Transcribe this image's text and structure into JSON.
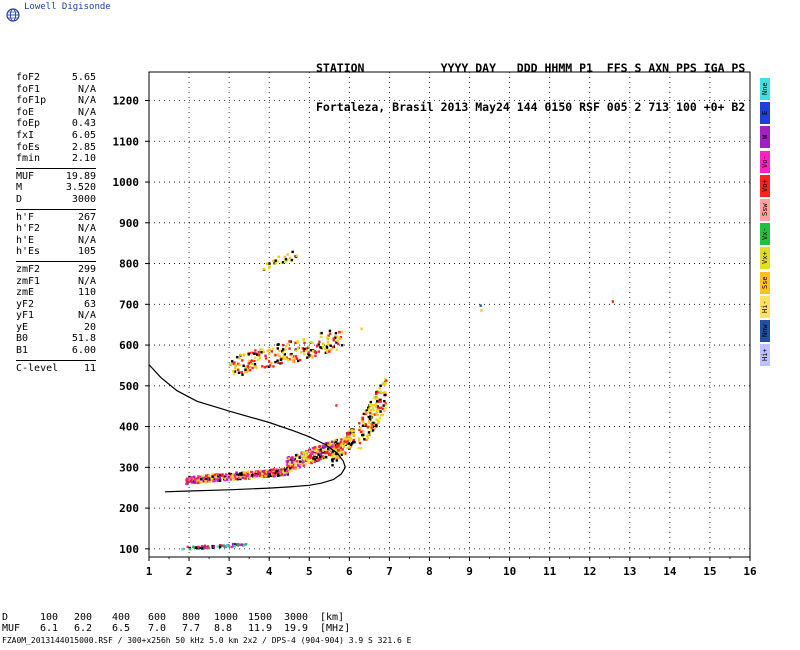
{
  "logo": {
    "brand": "Lowell Digisonde",
    "icon": "globe-icon"
  },
  "header": {
    "line1": "STATION           YYYY DAY   DDD HHMM P1  FFS S AXN PPS IGA PS",
    "line2": "Fortaleza, Brasil 2013 May24 144 0150 RSF 005 2 713 100 +0+ B2"
  },
  "params": {
    "group1": [
      {
        "label": "foF2",
        "value": "5.65"
      },
      {
        "label": "foF1",
        "value": "N/A"
      },
      {
        "label": "foF1p",
        "value": "N/A"
      },
      {
        "label": "foE",
        "value": "N/A"
      },
      {
        "label": "foEp",
        "value": "0.43"
      },
      {
        "label": "fxI",
        "value": "6.05"
      },
      {
        "label": "foEs",
        "value": "2.85"
      },
      {
        "label": "fmin",
        "value": "2.10"
      }
    ],
    "group2": [
      {
        "label": "MUF",
        "value": "19.89"
      },
      {
        "label": "M",
        "value": "3.520"
      },
      {
        "label": "D",
        "value": "3000"
      }
    ],
    "group3": [
      {
        "label": "h'F",
        "value": "267"
      },
      {
        "label": "h'F2",
        "value": "N/A"
      },
      {
        "label": "h'E",
        "value": "N/A"
      },
      {
        "label": "h'Es",
        "value": "105"
      }
    ],
    "group4": [
      {
        "label": "zmF2",
        "value": "299"
      },
      {
        "label": "zmF1",
        "value": "N/A"
      },
      {
        "label": "zmE",
        "value": "110"
      },
      {
        "label": "yF2",
        "value": "63"
      },
      {
        "label": "yF1",
        "value": "N/A"
      },
      {
        "label": "yE",
        "value": "20"
      },
      {
        "label": "B0",
        "value": "51.8"
      },
      {
        "label": "B1",
        "value": "6.00"
      }
    ],
    "group5": [
      {
        "label": "C-level",
        "value": "11"
      }
    ]
  },
  "legend": [
    {
      "label": "Nne",
      "color": "#40e0e0"
    },
    {
      "label": "E",
      "color": "#1f3fd8"
    },
    {
      "label": "W",
      "color": "#a020c0"
    },
    {
      "label": "Vo-",
      "color": "#ff20c0"
    },
    {
      "label": "Vo+",
      "color": "#ff2020"
    },
    {
      "label": "Ssw",
      "color": "#ffa0a0"
    },
    {
      "label": "Vx-",
      "color": "#20c040"
    },
    {
      "label": "Vx+",
      "color": "#e0e020"
    },
    {
      "label": "Sse",
      "color": "#ffc020"
    },
    {
      "label": "Hi-",
      "color": "#ffe060"
    },
    {
      "label": "Nnw",
      "color": "#2050a0"
    },
    {
      "label": "Hi+",
      "color": "#c0c0ff"
    }
  ],
  "table": {
    "row1_label": "D",
    "row1": [
      "100",
      "200",
      "400",
      "600",
      "800",
      "1000",
      "1500",
      "3000",
      "[km]"
    ],
    "row2_label": "MUF",
    "row2": [
      "6.1",
      "6.2",
      "6.5",
      "7.0",
      "7.7",
      "8.8",
      "11.9",
      "19.9",
      "[MHz]"
    ]
  },
  "footer": "FZA0M_2013144015000.RSF / 300+x256h 50 kHz 5.0 km 2x2 / DPS-4 (904-904)  3.9 S 321.6 E",
  "chart_data": {
    "type": "scatter",
    "xlim": [
      1,
      16
    ],
    "ylim": [
      80,
      1270
    ],
    "x_ticks": [
      "1",
      "2",
      "3",
      "4",
      "5",
      "6",
      "7",
      "8",
      "9",
      "10",
      "11",
      "12",
      "13",
      "14",
      "15",
      "16"
    ],
    "y_ticks": [
      "100",
      "200",
      "300",
      "400",
      "500",
      "600",
      "700",
      "800",
      "900",
      "1000",
      "1100",
      "1200"
    ],
    "grid": "dotted",
    "profile": {
      "lower": [
        [
          1.4,
          240
        ],
        [
          2,
          242
        ],
        [
          3,
          245
        ],
        [
          4,
          249
        ],
        [
          4.5,
          252
        ],
        [
          5,
          256
        ],
        [
          5.3,
          261
        ],
        [
          5.6,
          270
        ],
        [
          5.8,
          284
        ],
        [
          5.9,
          300
        ]
      ],
      "upper": [
        [
          1,
          552
        ],
        [
          1.3,
          520
        ],
        [
          1.7,
          488
        ],
        [
          2.2,
          462
        ],
        [
          3,
          438
        ],
        [
          4,
          410
        ],
        [
          4.6,
          390
        ],
        [
          5,
          375
        ],
        [
          5.4,
          356
        ],
        [
          5.7,
          335
        ],
        [
          5.85,
          315
        ],
        [
          5.9,
          300
        ]
      ]
    },
    "clusters": [
      {
        "name": "E-sporadic trace",
        "x": [
          1.8,
          3.4
        ],
        "y": [
          100,
          116
        ],
        "n": 70,
        "colors": [
          "#ff20c0",
          "#ff2020",
          "#a020c0",
          "#40e0e0",
          "#20c040",
          "#000000"
        ]
      },
      {
        "name": "F trace low",
        "x": [
          1.9,
          4.5
        ],
        "y": [
          262,
          300
        ],
        "n": 380,
        "colors": [
          "#ff20c0",
          "#ff2020",
          "#a020c0",
          "#000000",
          "#ffc020",
          "#e0e020"
        ]
      },
      {
        "name": "F trace mid",
        "x": [
          4.4,
          5.7
        ],
        "y": [
          290,
          370
        ],
        "n": 300,
        "colors": [
          "#ffc020",
          "#e0e020",
          "#ff20c0",
          "#000000",
          "#ff2020",
          "#a020c0",
          "#ffe060"
        ]
      },
      {
        "name": "F spread",
        "x": [
          5.5,
          6.1
        ],
        "y": [
          300,
          400
        ],
        "n": 120,
        "colors": [
          "#ffc020",
          "#e0e020",
          "#000000",
          "#ff2020"
        ]
      },
      {
        "name": "F high freq",
        "x": [
          6.2,
          6.9
        ],
        "y": [
          330,
          520
        ],
        "n": 140,
        "colors": [
          "#000000",
          "#ffc020",
          "#e0e020",
          "#ff2020"
        ]
      },
      {
        "name": "Second hop",
        "x": [
          3.0,
          5.8
        ],
        "y": [
          520,
          640
        ],
        "n": 220,
        "colors": [
          "#000000",
          "#ffc020",
          "#e0e020",
          "#ff2020"
        ]
      },
      {
        "name": "Third hop",
        "x": [
          3.8,
          4.7
        ],
        "y": [
          785,
          835
        ],
        "n": 28,
        "colors": [
          "#ffc020",
          "#e0e020",
          "#000000"
        ]
      }
    ],
    "isolated_points": [
      {
        "x": 9.25,
        "y": 700,
        "color": "#2050a0"
      },
      {
        "x": 9.27,
        "y": 688,
        "color": "#ffc020"
      },
      {
        "x": 12.55,
        "y": 710,
        "color": "#ff2020"
      },
      {
        "x": 6.28,
        "y": 643,
        "color": "#ffc020"
      },
      {
        "x": 5.65,
        "y": 455,
        "color": "#ff2020"
      }
    ]
  }
}
